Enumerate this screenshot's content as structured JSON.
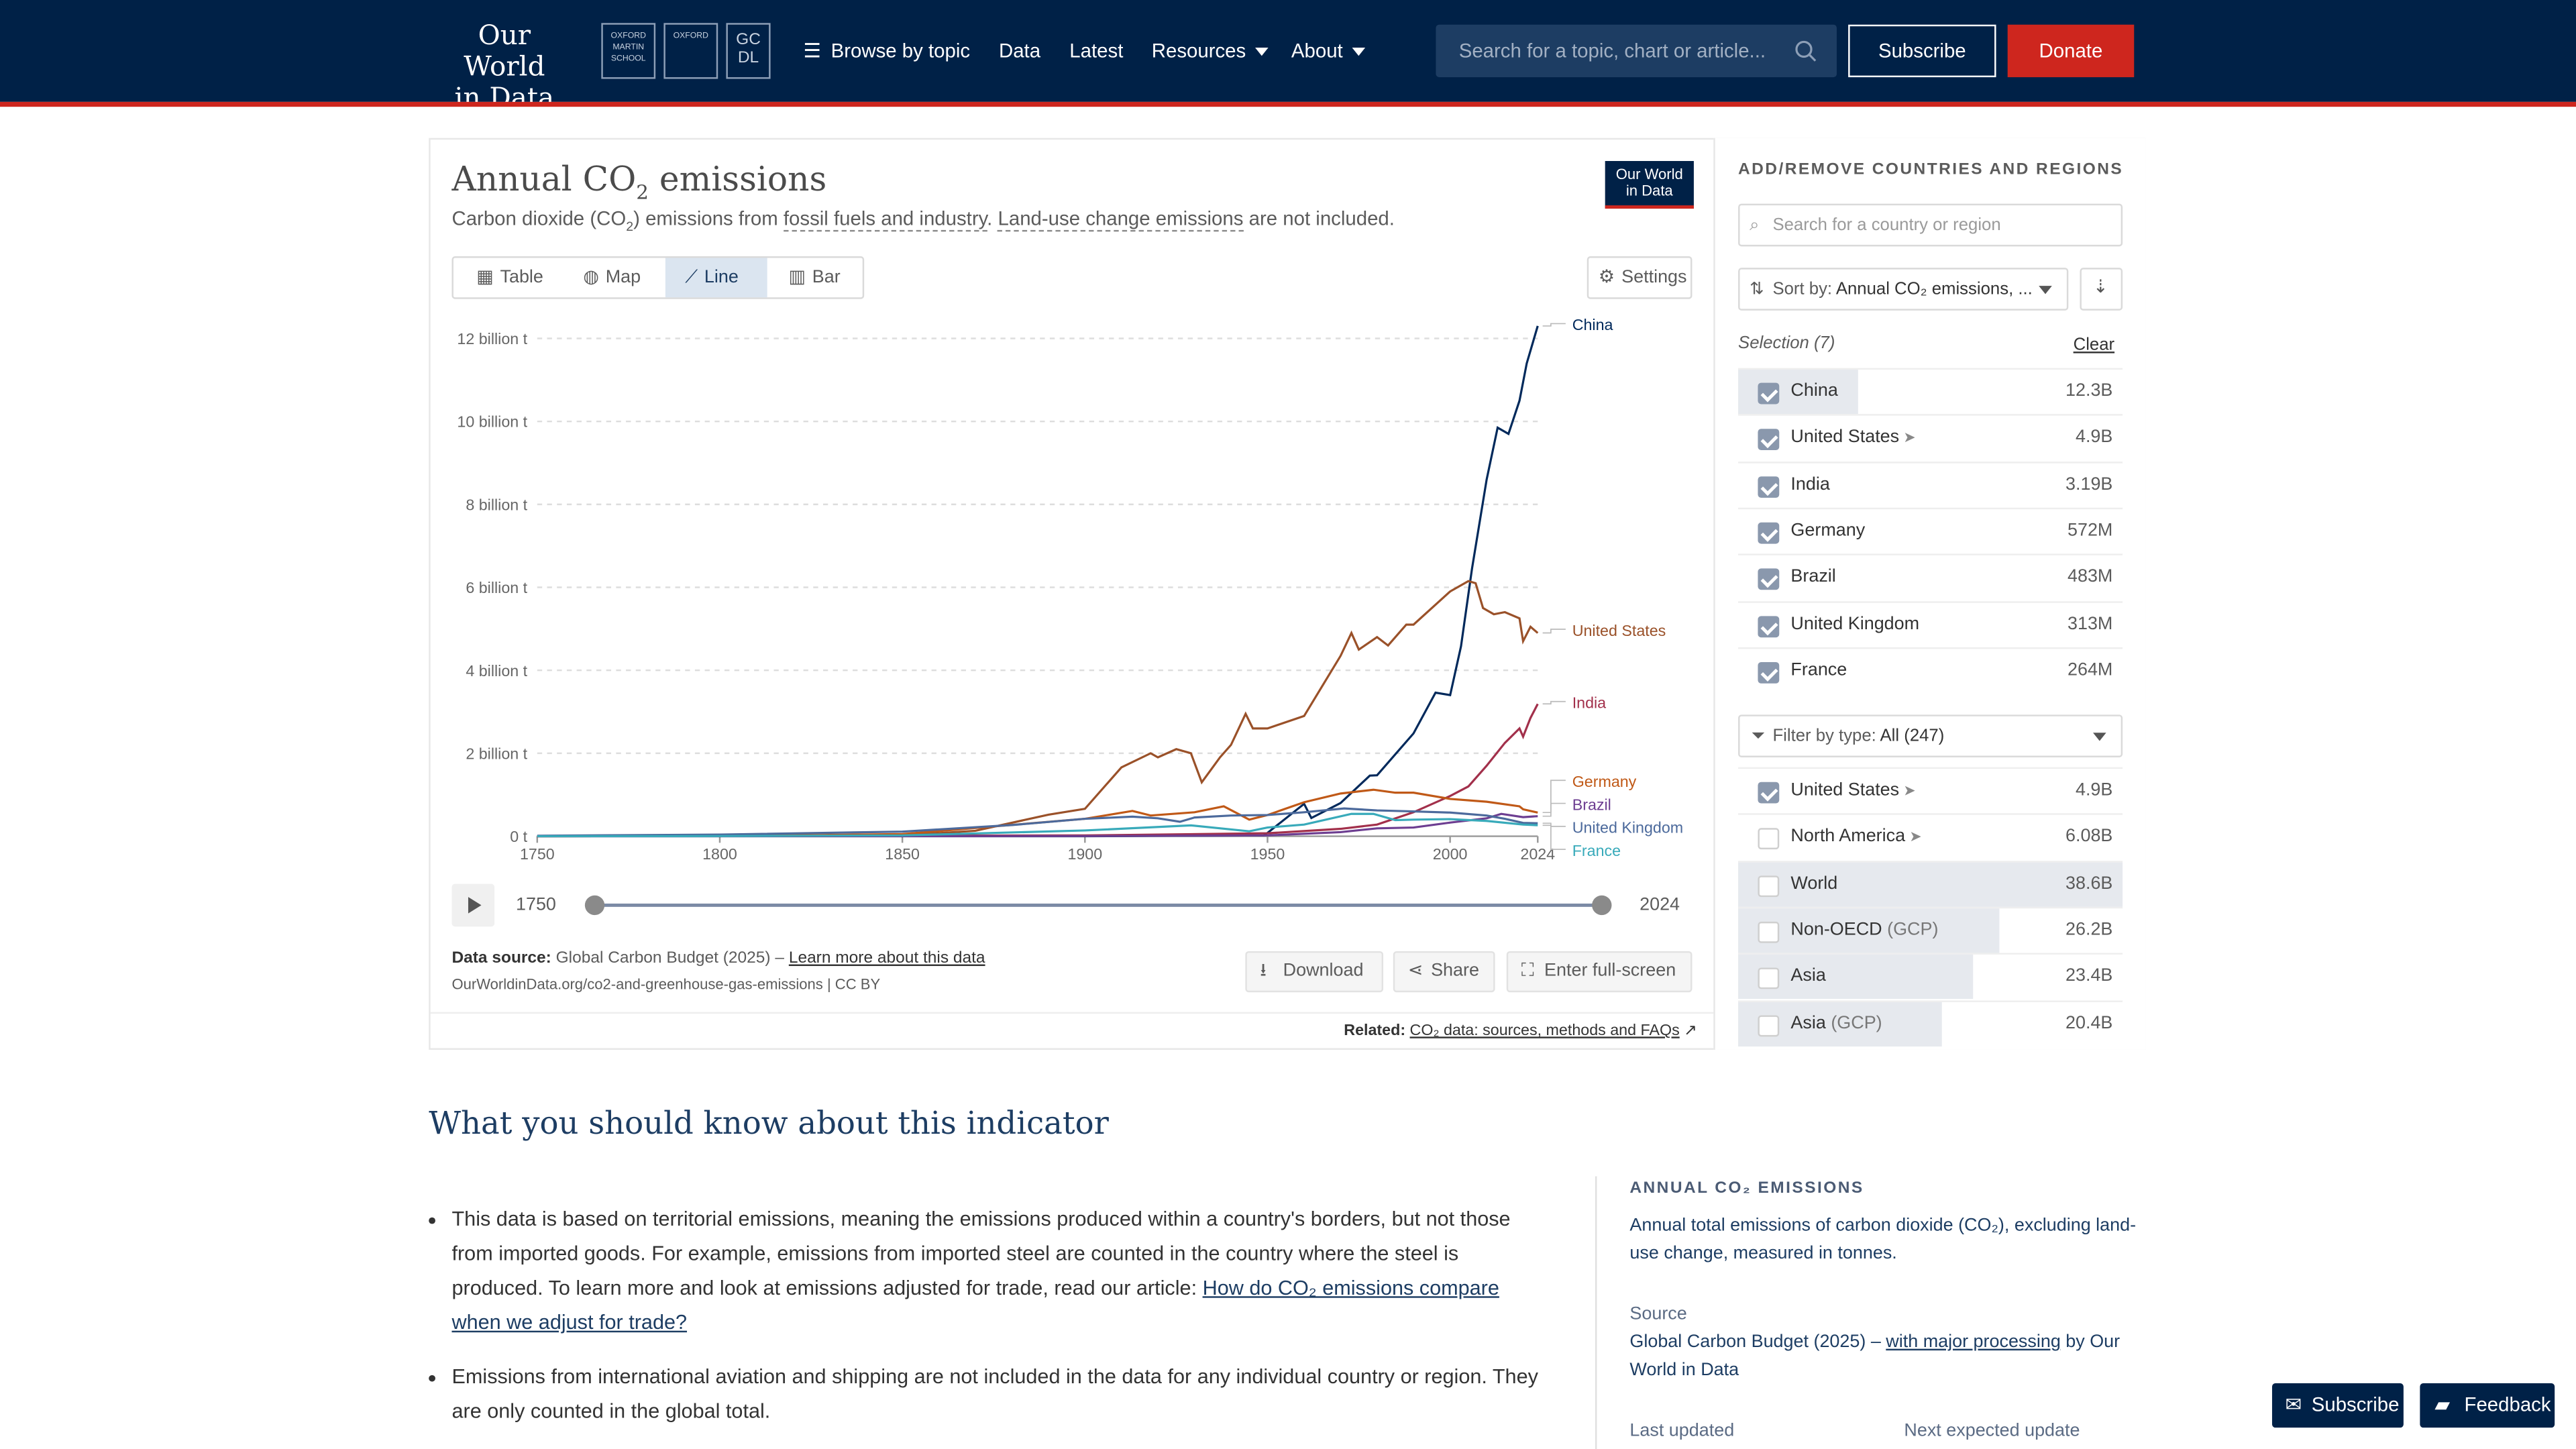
{
  "nav": {
    "logo_line1": "Our World",
    "logo_line2": "in Data",
    "crest1": "OXFORD MARTIN SCHOOL",
    "crest2": "OXFORD",
    "crest3": "GC DL",
    "browse": "Browse by topic",
    "data": "Data",
    "latest": "Latest",
    "resources": "Resources",
    "about": "About",
    "search_placeholder": "Search for a topic, chart or article...",
    "subscribe": "Subscribe",
    "donate": "Donate"
  },
  "chart_header": {
    "title_pre": "Annual CO",
    "title_sub": "2",
    "title_post": " emissions",
    "subtitle_pre": "Carbon dioxide (CO",
    "subtitle_sub": "2",
    "subtitle_mid": ") emissions from ",
    "subtitle_link1": "fossil fuels and industry",
    "subtitle_dot": ". ",
    "subtitle_link2": "Land-use change emissions",
    "subtitle_post": " are not included.",
    "badge_line1": "Our World",
    "badge_line2": "in Data"
  },
  "tabs": [
    "Table",
    "Map",
    "Line",
    "Bar"
  ],
  "active_tab": "Line",
  "settings_label": "Settings",
  "timeline": {
    "start": "1750",
    "end": "2024"
  },
  "footer": {
    "source_label": "Data source:",
    "source_text": " Global Carbon Budget (2025) – ",
    "source_link": "Learn more about this data",
    "url": "OurWorldinData.org/co2-and-greenhouse-gas-emissions | CC BY",
    "download": "Download",
    "share": "Share",
    "fullscreen": "Enter full-screen",
    "related_label": "Related:",
    "related_link": "CO₂ data: sources, methods and FAQs"
  },
  "chart_data": {
    "type": "line",
    "y_ticks": [
      "0 t",
      "2 billion t",
      "4 billion t",
      "6 billion t",
      "8 billion t",
      "10 billion t",
      "12 billion t"
    ],
    "x_ticks": [
      "1750",
      "1800",
      "1850",
      "1900",
      "1950",
      "2000",
      "2024"
    ],
    "xlim": [
      1750,
      2024
    ],
    "ylim": [
      0,
      12000000000
    ],
    "grid": "horizontal dashed",
    "series": [
      {
        "name": "China",
        "color": "#00295b",
        "points": [
          [
            1750,
            0
          ],
          [
            1900,
            0
          ],
          [
            1949,
            20000000
          ],
          [
            1950,
            80000000
          ],
          [
            1960,
            780000000
          ],
          [
            1962,
            440000000
          ],
          [
            1970,
            800000000
          ],
          [
            1978,
            1460000000
          ],
          [
            1980,
            1470000000
          ],
          [
            1990,
            2480000000
          ],
          [
            1996,
            3460000000
          ],
          [
            2000,
            3400000000
          ],
          [
            2003,
            4580000000
          ],
          [
            2006,
            6450000000
          ],
          [
            2010,
            8600000000
          ],
          [
            2013,
            9850000000
          ],
          [
            2016,
            9700000000
          ],
          [
            2019,
            10500000000
          ],
          [
            2021,
            11400000000
          ],
          [
            2024,
            12300000000
          ]
        ]
      },
      {
        "name": "United States",
        "color": "#9a5129",
        "points": [
          [
            1750,
            0
          ],
          [
            1800,
            2000000
          ],
          [
            1850,
            20000000
          ],
          [
            1870,
            130000000
          ],
          [
            1890,
            520000000
          ],
          [
            1900,
            660000000
          ],
          [
            1910,
            1660000000
          ],
          [
            1918,
            2000000000
          ],
          [
            1920,
            1900000000
          ],
          [
            1925,
            2100000000
          ],
          [
            1929,
            2000000000
          ],
          [
            1932,
            1300000000
          ],
          [
            1937,
            1900000000
          ],
          [
            1940,
            2200000000
          ],
          [
            1944,
            2950000000
          ],
          [
            1946,
            2600000000
          ],
          [
            1950,
            2600000000
          ],
          [
            1960,
            2900000000
          ],
          [
            1970,
            4350000000
          ],
          [
            1973,
            4900000000
          ],
          [
            1975,
            4500000000
          ],
          [
            1980,
            4800000000
          ],
          [
            1983,
            4600000000
          ],
          [
            1988,
            5100000000
          ],
          [
            1990,
            5100000000
          ],
          [
            2000,
            5900000000
          ],
          [
            2005,
            6150000000
          ],
          [
            2007,
            6100000000
          ],
          [
            2009,
            5500000000
          ],
          [
            2012,
            5350000000
          ],
          [
            2015,
            5400000000
          ],
          [
            2019,
            5250000000
          ],
          [
            2020,
            4700000000
          ],
          [
            2022,
            5050000000
          ],
          [
            2024,
            4900000000
          ]
        ]
      },
      {
        "name": "India",
        "color": "#a2304b",
        "points": [
          [
            1750,
            0
          ],
          [
            1900,
            20000000
          ],
          [
            1950,
            70000000
          ],
          [
            1970,
            180000000
          ],
          [
            1980,
            280000000
          ],
          [
            1990,
            580000000
          ],
          [
            2000,
            970000000
          ],
          [
            2005,
            1200000000
          ],
          [
            2010,
            1700000000
          ],
          [
            2015,
            2250000000
          ],
          [
            2019,
            2600000000
          ],
          [
            2020,
            2400000000
          ],
          [
            2022,
            2850000000
          ],
          [
            2024,
            3190000000
          ]
        ]
      },
      {
        "name": "Germany",
        "color": "#c05917",
        "points": [
          [
            1750,
            0
          ],
          [
            1800,
            5000000
          ],
          [
            1850,
            50000000
          ],
          [
            1900,
            420000000
          ],
          [
            1913,
            610000000
          ],
          [
            1918,
            500000000
          ],
          [
            1930,
            580000000
          ],
          [
            1938,
            720000000
          ],
          [
            1945,
            400000000
          ],
          [
            1950,
            510000000
          ],
          [
            1960,
            820000000
          ],
          [
            1970,
            1030000000
          ],
          [
            1979,
            1120000000
          ],
          [
            1985,
            1050000000
          ],
          [
            1990,
            1050000000
          ],
          [
            2000,
            900000000
          ],
          [
            2010,
            830000000
          ],
          [
            2019,
            720000000
          ],
          [
            2020,
            650000000
          ],
          [
            2024,
            572000000
          ]
        ]
      },
      {
        "name": "Brazil",
        "color": "#6d3e91",
        "points": [
          [
            1750,
            0
          ],
          [
            1900,
            2000000
          ],
          [
            1950,
            20000000
          ],
          [
            1970,
            100000000
          ],
          [
            1980,
            190000000
          ],
          [
            1990,
            210000000
          ],
          [
            2000,
            330000000
          ],
          [
            2010,
            430000000
          ],
          [
            2014,
            540000000
          ],
          [
            2020,
            460000000
          ],
          [
            2024,
            483000000
          ]
        ]
      },
      {
        "name": "United Kingdom",
        "color": "#4c6a9c",
        "points": [
          [
            1750,
            10000000
          ],
          [
            1800,
            40000000
          ],
          [
            1850,
            110000000
          ],
          [
            1880,
            270000000
          ],
          [
            1900,
            420000000
          ],
          [
            1913,
            470000000
          ],
          [
            1920,
            430000000
          ],
          [
            1926,
            350000000
          ],
          [
            1930,
            450000000
          ],
          [
            1940,
            500000000
          ],
          [
            1950,
            510000000
          ],
          [
            1960,
            580000000
          ],
          [
            1971,
            670000000
          ],
          [
            1980,
            620000000
          ],
          [
            1990,
            600000000
          ],
          [
            2000,
            570000000
          ],
          [
            2010,
            500000000
          ],
          [
            2015,
            420000000
          ],
          [
            2020,
            320000000
          ],
          [
            2024,
            313000000
          ]
        ]
      },
      {
        "name": "France",
        "color": "#38aaba",
        "points": [
          [
            1750,
            0
          ],
          [
            1800,
            2000000
          ],
          [
            1850,
            20000000
          ],
          [
            1900,
            140000000
          ],
          [
            1929,
            260000000
          ],
          [
            1945,
            120000000
          ],
          [
            1950,
            210000000
          ],
          [
            1960,
            280000000
          ],
          [
            1973,
            540000000
          ],
          [
            1979,
            540000000
          ],
          [
            1985,
            390000000
          ],
          [
            1990,
            400000000
          ],
          [
            2000,
            410000000
          ],
          [
            2010,
            370000000
          ],
          [
            2020,
            280000000
          ],
          [
            2024,
            264000000
          ]
        ]
      }
    ],
    "end_labels": [
      "China",
      "United States",
      "India",
      "Germany",
      "Brazil",
      "United Kingdom",
      "France"
    ]
  },
  "sidebar": {
    "heading": "ADD/REMOVE COUNTRIES AND REGIONS",
    "search_placeholder": "Search for a country or region",
    "sort_prefix": "Sort by: ",
    "sort_value": "Annual CO₂ emissions, ...",
    "selection_label": "Selection (7)",
    "clear": "Clear",
    "selected": [
      {
        "name": "China",
        "value": "12.3B",
        "frac": 0.31
      },
      {
        "name": "United States",
        "value": "4.9B",
        "frac": 0.0
      },
      {
        "name": "India",
        "value": "3.19B",
        "frac": 0.0
      },
      {
        "name": "Germany",
        "value": "572M",
        "frac": 0.0
      },
      {
        "name": "Brazil",
        "value": "483M",
        "frac": 0.0
      },
      {
        "name": "United Kingdom",
        "value": "313M",
        "frac": 0.0
      },
      {
        "name": "France",
        "value": "264M",
        "frac": 0.0
      }
    ],
    "filter_prefix": "Filter by type: ",
    "filter_value": "All (247)",
    "available": [
      {
        "name": "United States",
        "value": "4.9B",
        "checked": true,
        "frac": 0.0
      },
      {
        "name": "North America",
        "value": "6.08B",
        "checked": false,
        "frac": 0.0
      },
      {
        "name": "World",
        "value": "38.6B",
        "checked": false,
        "frac": 1.0
      },
      {
        "name": "Non-OECD",
        "suffix": " (GCP)",
        "value": "26.2B",
        "checked": false,
        "frac": 0.68
      },
      {
        "name": "Asia",
        "value": "23.4B",
        "checked": false,
        "frac": 0.61
      },
      {
        "name": "Asia",
        "suffix": " (GCP)",
        "value": "20.4B",
        "checked": false,
        "frac": 0.53
      }
    ]
  },
  "article": {
    "heading": "What you should know about this indicator",
    "bullet1_text": "This data is based on territorial emissions, meaning the emissions produced within a country's borders, but not those from imported goods. For example, emissions from imported steel are counted in the country where the steel is produced. To learn more and look at emissions adjusted for trade, read our article: ",
    "bullet1_link": "How do CO₂ emissions compare when we adjust for trade?",
    "bullet2_text": "Emissions from international aviation and shipping are not included in the data for any individual country or region. They are only counted in the global total.",
    "key_heading": "ANNUAL CO₂ EMISSIONS",
    "key_desc": "Annual total emissions of carbon dioxide (CO₂), excluding land-use change, measured in tonnes.",
    "source_label": "Source",
    "source_pre": "Global Carbon Budget (2025) – ",
    "source_link": "with major processing",
    "source_post": " by Our World in Data",
    "last_updated": "Last updated",
    "next_update": "Next expected update"
  },
  "floating": {
    "subscribe": "Subscribe",
    "feedback": "Feedback"
  }
}
